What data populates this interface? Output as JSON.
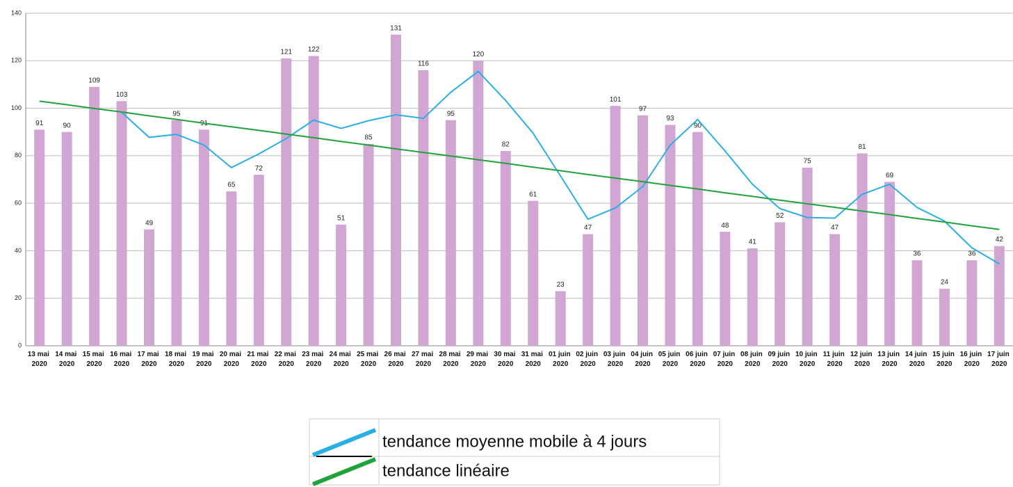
{
  "chart_data": {
    "type": "bar",
    "categories": [
      "13 mai 2020",
      "14 mai 2020",
      "15 mai 2020",
      "16 mai 2020",
      "17 mai 2020",
      "18 mai 2020",
      "19 mai 2020",
      "20 mai 2020",
      "21 mai 2020",
      "22 mai 2020",
      "23 mai 2020",
      "24 mai 2020",
      "25 mai 2020",
      "26 mai 2020",
      "27 mai 2020",
      "28 mai 2020",
      "29 mai 2020",
      "30 mai 2020",
      "31 mai 2020",
      "01 juin 2020",
      "02 juin 2020",
      "03 juin 2020",
      "04 juin 2020",
      "05 juin 2020",
      "06 juin 2020",
      "07 juin 2020",
      "08 juin 2020",
      "09 juin 2020",
      "10 juin 2020",
      "11 juin 2020",
      "12 juin 2020",
      "13 juin 2020",
      "14 juin 2020",
      "15 juin 2020",
      "16 juin 2020",
      "17 juin 2020"
    ],
    "values": [
      91,
      90,
      109,
      103,
      49,
      95,
      91,
      65,
      72,
      121,
      122,
      51,
      85,
      131,
      116,
      95,
      120,
      82,
      61,
      23,
      47,
      101,
      97,
      93,
      90,
      48,
      41,
      52,
      75,
      47,
      81,
      69,
      36,
      24,
      36,
      42
    ],
    "color": "#d2a6d2",
    "series": [
      {
        "name": "tendance moyenne mobile à 4 jours",
        "color": "#2aaee6",
        "values": [
          null,
          null,
          null,
          98.25,
          87.75,
          89,
          84.5,
          75,
          80.75,
          87.25,
          95,
          91.5,
          94.75,
          97.25,
          95.75,
          106.75,
          115.5,
          103.25,
          89.5,
          71.5,
          53.25,
          58,
          67,
          84.5,
          95.25,
          82,
          68,
          57.75,
          54,
          53.75,
          63.75,
          68,
          58.25,
          52.5,
          41.25,
          34.5
        ]
      },
      {
        "name": "tendance linéaire",
        "color": "#1fa33a",
        "values": [
          103,
          101.5,
          99.9,
          98.4,
          96.8,
          95.3,
          93.7,
          92.2,
          90.7,
          89.1,
          87.6,
          86.0,
          84.5,
          82.9,
          81.4,
          79.9,
          78.3,
          76.8,
          75.2,
          73.7,
          72.1,
          70.6,
          69.1,
          67.5,
          66.0,
          64.4,
          62.9,
          61.3,
          59.8,
          58.3,
          56.7,
          55.2,
          53.6,
          52.1,
          50.5,
          49.0
        ]
      }
    ],
    "ylim": [
      0,
      140
    ],
    "yticks": [
      0,
      20,
      40,
      60,
      80,
      100,
      120,
      140
    ],
    "grid": true
  }
}
